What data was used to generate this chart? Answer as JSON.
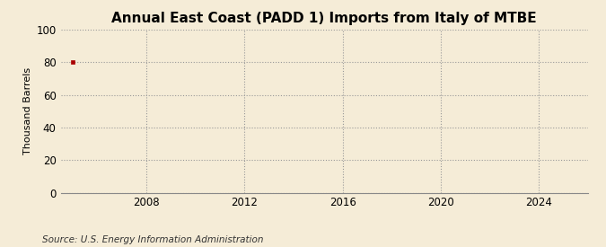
{
  "title": "Annual East Coast (PADD 1) Imports from Italy of MTBE",
  "ylabel": "Thousand Barrels",
  "source": "Source: U.S. Energy Information Administration",
  "background_color": "#f5ecd7",
  "plot_bg_color": "#f5ecd7",
  "data_x": [
    2005
  ],
  "data_y": [
    80
  ],
  "marker_color": "#aa0000",
  "marker": "s",
  "marker_size": 3,
  "xlim": [
    2004.5,
    2026
  ],
  "ylim": [
    0,
    100
  ],
  "xticks": [
    2008,
    2012,
    2016,
    2020,
    2024
  ],
  "yticks": [
    0,
    20,
    40,
    60,
    80,
    100
  ],
  "grid_color": "#999999",
  "grid_style": ":",
  "title_fontsize": 11,
  "label_fontsize": 8,
  "tick_fontsize": 8.5,
  "source_fontsize": 7.5
}
